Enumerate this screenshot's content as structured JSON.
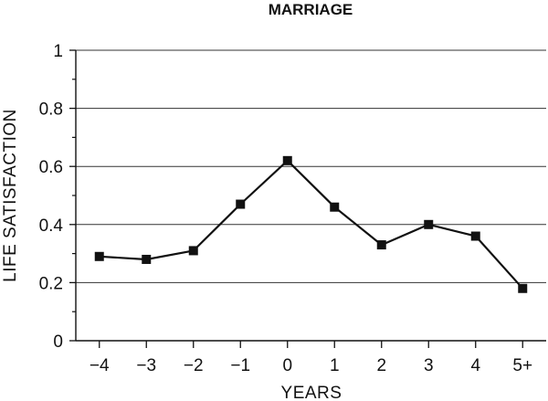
{
  "chart_data": {
    "type": "line",
    "title": "MARRIAGE",
    "xlabel": "YEARS",
    "ylabel": "LIFE SATISFACTION",
    "categories": [
      "−4",
      "−3",
      "−2",
      "−1",
      "0",
      "1",
      "2",
      "3",
      "4",
      "5+"
    ],
    "values": [
      0.29,
      0.28,
      0.31,
      0.47,
      0.62,
      0.46,
      0.33,
      0.4,
      0.36,
      0.18
    ],
    "ylim": [
      0,
      1
    ],
    "yticks": [
      "0",
      "0.2",
      "0.4",
      "0.6",
      "0.8",
      "1"
    ],
    "grid": "horizontal",
    "marker": "square",
    "colors": {
      "line": "#111111",
      "grid": "#333333",
      "marker": "#111111"
    }
  }
}
